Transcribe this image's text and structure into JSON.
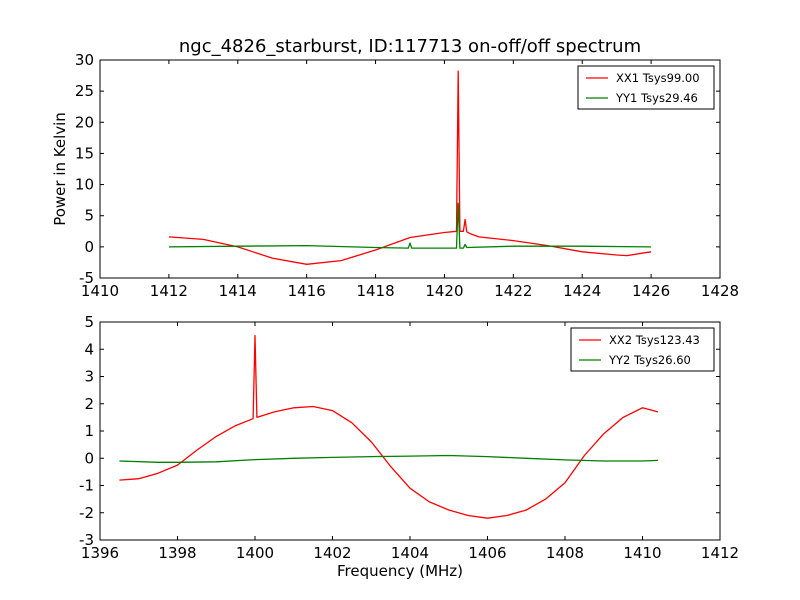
{
  "figure": {
    "title": "ngc_4826_starburst, ID:117713 on-off/off spectrum"
  },
  "chart_data": [
    {
      "type": "line",
      "title": "ngc_4826_starburst, ID:117713 on-off/off spectrum",
      "xlabel": "",
      "ylabel": "Power in Kelvin",
      "xlim": [
        1410,
        1428
      ],
      "ylim": [
        -5,
        30
      ],
      "xticks": [
        1410,
        1412,
        1414,
        1416,
        1418,
        1420,
        1422,
        1424,
        1426,
        1428
      ],
      "yticks": [
        -5,
        0,
        5,
        10,
        15,
        20,
        25,
        30
      ],
      "legend_position": "top-right",
      "grid": false,
      "series": [
        {
          "name": "XX1 Tsys99.00",
          "color": "#ff0000",
          "x": [
            1412.0,
            1413.0,
            1414.0,
            1415.0,
            1416.0,
            1417.0,
            1418.0,
            1419.0,
            1420.0,
            1420.35,
            1420.4,
            1420.45,
            1420.55,
            1420.6,
            1420.65,
            1420.8,
            1421.0,
            1422.0,
            1423.0,
            1424.0,
            1425.0,
            1425.3,
            1426.0
          ],
          "y": [
            1.6,
            1.2,
            0.0,
            -1.8,
            -2.8,
            -2.2,
            -0.5,
            1.5,
            2.3,
            2.5,
            28.2,
            2.5,
            2.5,
            4.4,
            2.4,
            2.0,
            1.6,
            1.0,
            0.2,
            -0.8,
            -1.3,
            -1.4,
            -0.8
          ]
        },
        {
          "name": "YY1 Tsys29.46",
          "color": "#008000",
          "x": [
            1412.0,
            1414.0,
            1416.0,
            1418.0,
            1418.95,
            1419.0,
            1419.05,
            1420.35,
            1420.4,
            1420.45,
            1420.55,
            1420.6,
            1420.65,
            1422.0,
            1424.0,
            1426.0
          ],
          "y": [
            0.0,
            0.1,
            0.2,
            -0.1,
            -0.2,
            0.6,
            -0.2,
            -0.2,
            7.0,
            -0.2,
            -0.2,
            0.4,
            -0.1,
            0.1,
            0.1,
            0.0
          ]
        }
      ]
    },
    {
      "type": "line",
      "title": "",
      "xlabel": "Frequency (MHz)",
      "ylabel": "",
      "xlim": [
        1396,
        1412
      ],
      "ylim": [
        -3,
        5
      ],
      "xticks": [
        1396,
        1398,
        1400,
        1402,
        1404,
        1406,
        1408,
        1410,
        1412
      ],
      "yticks": [
        -3,
        -2,
        -1,
        0,
        1,
        2,
        3,
        4,
        5
      ],
      "legend_position": "top-right",
      "grid": false,
      "series": [
        {
          "name": "XX2 Tsys123.43",
          "color": "#ff0000",
          "x": [
            1396.5,
            1397.0,
            1397.5,
            1398.0,
            1398.5,
            1399.0,
            1399.5,
            1399.95,
            1400.0,
            1400.05,
            1400.5,
            1401.0,
            1401.5,
            1402.0,
            1402.5,
            1403.0,
            1403.5,
            1404.0,
            1404.5,
            1405.0,
            1405.5,
            1406.0,
            1406.5,
            1407.0,
            1407.5,
            1408.0,
            1408.5,
            1409.0,
            1409.5,
            1410.0,
            1410.4
          ],
          "y": [
            -0.8,
            -0.75,
            -0.55,
            -0.25,
            0.3,
            0.8,
            1.2,
            1.45,
            4.5,
            1.5,
            1.7,
            1.85,
            1.9,
            1.75,
            1.3,
            0.6,
            -0.3,
            -1.1,
            -1.6,
            -1.9,
            -2.1,
            -2.2,
            -2.1,
            -1.9,
            -1.5,
            -0.9,
            0.1,
            0.9,
            1.5,
            1.85,
            1.7
          ]
        },
        {
          "name": "YY2 Tsys26.60",
          "color": "#008000",
          "x": [
            1396.5,
            1397.5,
            1398.0,
            1399.0,
            1400.0,
            1401.0,
            1402.0,
            1403.0,
            1404.0,
            1405.0,
            1406.0,
            1407.0,
            1408.0,
            1409.0,
            1410.0,
            1410.4
          ],
          "y": [
            -0.1,
            -0.15,
            -0.15,
            -0.13,
            -0.05,
            0.0,
            0.03,
            0.06,
            0.08,
            0.1,
            0.06,
            0.0,
            -0.06,
            -0.1,
            -0.1,
            -0.08
          ]
        }
      ]
    }
  ]
}
